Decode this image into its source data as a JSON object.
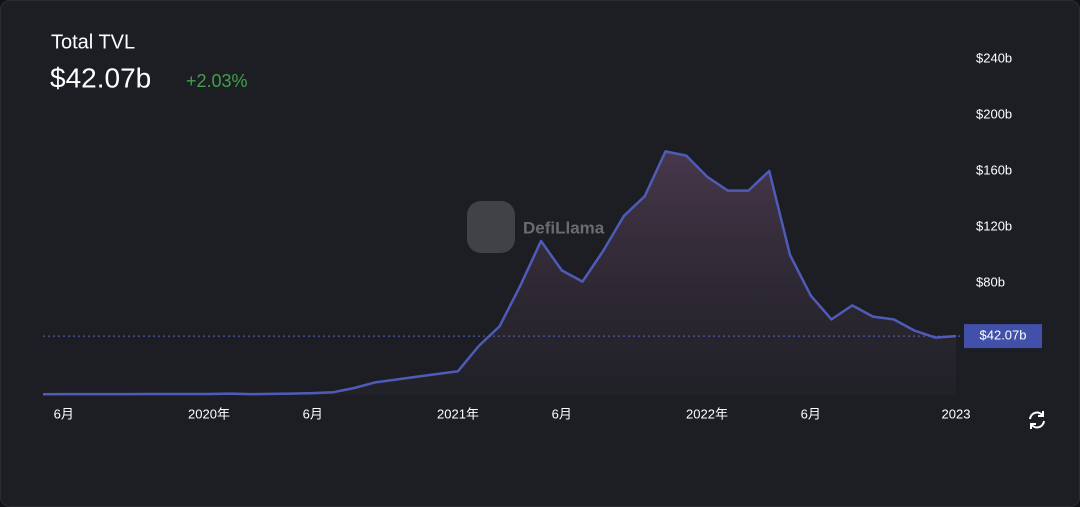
{
  "chart_data": {
    "type": "area",
    "title": "Total TVL",
    "current_value": {
      "value": 42.07,
      "label": "$42.07b"
    },
    "change": "+2.03%",
    "watermark": "DefiLlama",
    "x": [
      "2019-05",
      "2019-06",
      "2019-07",
      "2019-08",
      "2019-09",
      "2019-10",
      "2019-11",
      "2019-12",
      "2020-01",
      "2020-02",
      "2020-03",
      "2020-04",
      "2020-05",
      "2020-06",
      "2020-07",
      "2020-08",
      "2020-09",
      "2020-10",
      "2020-11",
      "2020-12",
      "2021-01",
      "2021-02",
      "2021-03",
      "2021-04",
      "2021-05",
      "2021-06",
      "2021-07",
      "2021-08",
      "2021-09",
      "2021-10",
      "2021-11",
      "2021-12",
      "2022-01",
      "2022-02",
      "2022-03",
      "2022-04",
      "2022-05",
      "2022-06",
      "2022-07",
      "2022-08",
      "2022-09",
      "2022-10",
      "2022-11",
      "2022-12",
      "2023-01"
    ],
    "series": [
      {
        "name": "Total TVL",
        "color": "#4e5cb8",
        "values": [
          0.5,
          0.6,
          0.6,
          0.6,
          0.6,
          0.7,
          0.7,
          0.7,
          0.7,
          1,
          0.6,
          0.8,
          1,
          1.3,
          2,
          5,
          9,
          11,
          13,
          15,
          17,
          35,
          49,
          78,
          110,
          89,
          81,
          103,
          128,
          142,
          174,
          171,
          156,
          146,
          146,
          160,
          100,
          71,
          54,
          64,
          56,
          54,
          46,
          41,
          42.07
        ]
      }
    ],
    "xticks": [
      {
        "value": "2019-06",
        "label": "6月"
      },
      {
        "value": "2020-01",
        "label": "2020年"
      },
      {
        "value": "2020-06",
        "label": "6月"
      },
      {
        "value": "2021-01",
        "label": "2021年"
      },
      {
        "value": "2021-06",
        "label": "6月"
      },
      {
        "value": "2022-01",
        "label": "2022年"
      },
      {
        "value": "2022-06",
        "label": "6月"
      },
      {
        "value": "2023-01",
        "label": "2023"
      }
    ],
    "ylim": [
      0,
      250
    ],
    "yticks": [
      {
        "value": 80,
        "label": "$80b"
      },
      {
        "value": 120,
        "label": "$120b"
      },
      {
        "value": 160,
        "label": "$160b"
      },
      {
        "value": 200,
        "label": "$200b"
      },
      {
        "value": 240,
        "label": "$240b"
      }
    ]
  }
}
